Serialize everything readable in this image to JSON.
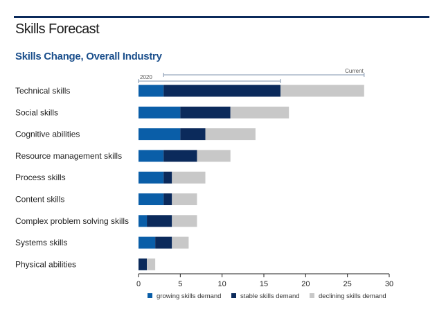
{
  "page": {
    "title": "Skills Forecast",
    "subtitle": "Skills Change, Overall Industry"
  },
  "colors": {
    "growing": "#0a5ea8",
    "stable": "#0b2a5b",
    "declining": "#c8c8c8",
    "axis": "#222222",
    "bracket": "#7f93ad"
  },
  "chart_data": {
    "type": "bar",
    "orientation": "horizontal",
    "stacked": true,
    "title": "Skills Change, Overall Industry",
    "categories": [
      "Technical skills",
      "Social skills",
      "Cognitive abilities",
      "Resource management skills",
      "Process skills",
      "Content skills",
      "Complex problem solving skills",
      "Systems skills",
      "Physical abilities"
    ],
    "series": [
      {
        "name": "growing skills demand",
        "values": [
          3,
          5,
          5,
          3,
          3,
          3,
          1,
          2,
          0
        ]
      },
      {
        "name": "stable skills demand",
        "values": [
          14,
          6,
          3,
          4,
          1,
          1,
          3,
          2,
          1
        ]
      },
      {
        "name": "declining skills demand",
        "values": [
          10,
          7,
          6,
          4,
          4,
          3,
          3,
          2,
          1
        ]
      }
    ],
    "xlim": [
      0,
      30
    ],
    "xticks": [
      0,
      5,
      10,
      15,
      20,
      25,
      30
    ],
    "annotations": [
      {
        "label": "2020",
        "from": 0,
        "to": 17
      },
      {
        "label": "Current",
        "from": 3,
        "to": 27
      }
    ],
    "legend_position": "bottom",
    "grid": false
  }
}
